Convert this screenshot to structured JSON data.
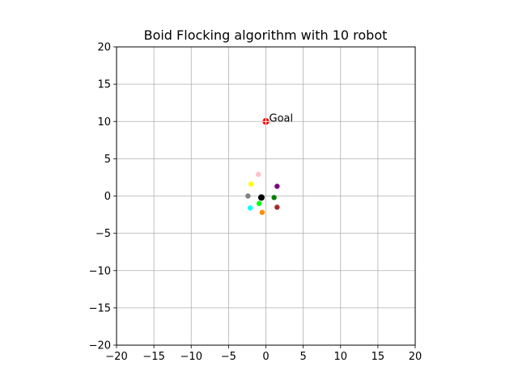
{
  "chart_data": {
    "type": "scatter",
    "title": "Boid Flocking algorithm with 10 robot",
    "xlabel": "",
    "ylabel": "",
    "xlim": [
      -20,
      20
    ],
    "ylim": [
      -20,
      20
    ],
    "x_ticks": [
      -20,
      -15,
      -10,
      -5,
      0,
      5,
      10,
      15,
      20
    ],
    "y_ticks": [
      -20,
      -15,
      -10,
      -5,
      0,
      5,
      10,
      15,
      20
    ],
    "x_tick_labels": [
      "−20",
      "−15",
      "−10",
      "−5",
      "0",
      "5",
      "10",
      "15",
      "20"
    ],
    "y_tick_labels": [
      "−20",
      "−15",
      "−10",
      "−5",
      "0",
      "5",
      "10",
      "15",
      "20"
    ],
    "grid": true,
    "goal": {
      "label": "Goal",
      "x": 0.0,
      "y": 10.0,
      "color": "#ff0000"
    },
    "points": [
      {
        "x": -0.6,
        "y": -0.2,
        "color": "#000000"
      },
      {
        "x": -1.0,
        "y": 2.9,
        "color": "#ffc0cb"
      },
      {
        "x": -2.0,
        "y": 1.6,
        "color": "#ffff00"
      },
      {
        "x": 1.5,
        "y": 1.3,
        "color": "#800080"
      },
      {
        "x": -2.4,
        "y": 0.0,
        "color": "#808080"
      },
      {
        "x": 1.1,
        "y": -0.2,
        "color": "#008000"
      },
      {
        "x": -0.9,
        "y": -1.0,
        "color": "#00ff00"
      },
      {
        "x": -2.1,
        "y": -1.6,
        "color": "#00ffff"
      },
      {
        "x": 1.5,
        "y": -1.5,
        "color": "#a52a2a"
      },
      {
        "x": -0.5,
        "y": -2.2,
        "color": "#ff8c00"
      }
    ]
  }
}
